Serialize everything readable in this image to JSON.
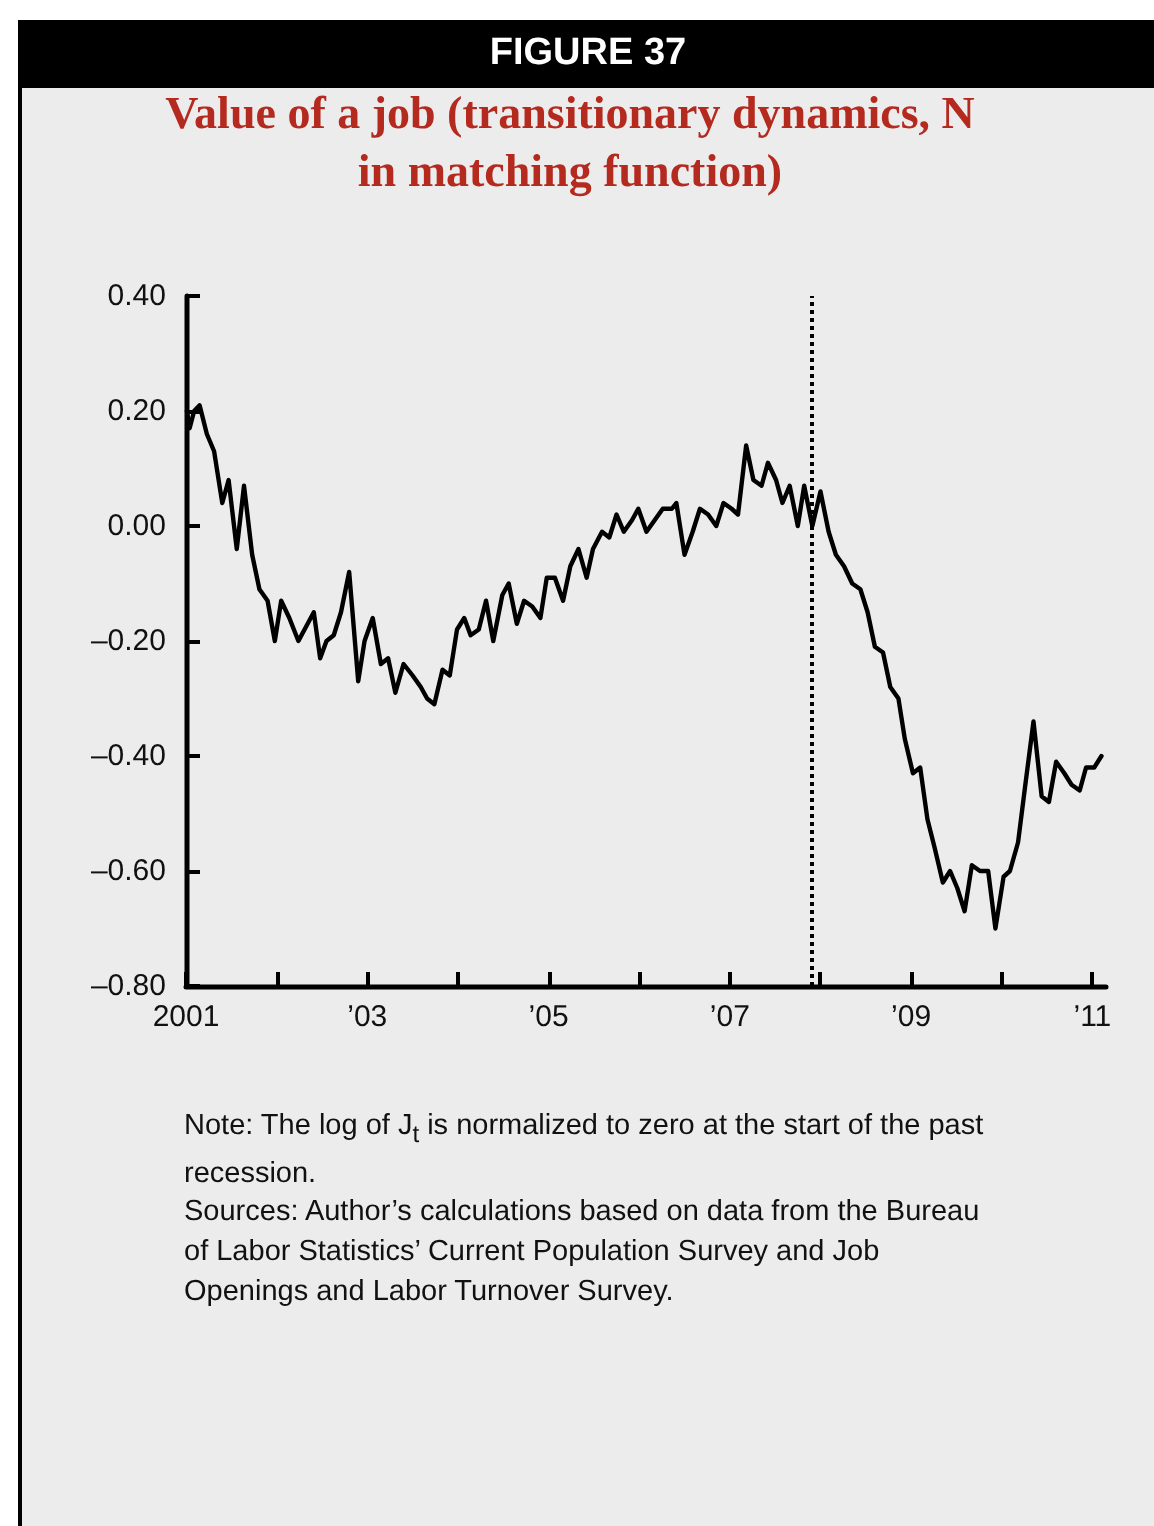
{
  "chart_data": {
    "type": "line",
    "title": "Value of a job (transitionary dynamics, N in matching function)",
    "annotations": [
      "FIGURE 37",
      "Note: The log of J$_{t}$ is normalized to zero at the start of the past recession.",
      "Sources: Author’s calculations based on data from the Bureau of Labor Statistics’ Current Population Survey and Job Openings and Labor Turnover Survey."
    ],
    "series": [
      {
        "color": "#000000",
        "x": [
          2001.01,
          2001.04,
          2001.09,
          2001.15,
          2001.23,
          2001.31,
          2001.4,
          2001.47,
          2001.56,
          2001.64,
          2001.73,
          2001.81,
          2001.9,
          2001.98,
          2002.05,
          2002.14,
          2002.24,
          2002.41,
          2002.48,
          2002.55,
          2002.63,
          2002.71,
          2002.8,
          2002.9,
          2002.97,
          2003.06,
          2003.15,
          2003.23,
          2003.31,
          2003.4,
          2003.5,
          2003.59,
          2003.66,
          2003.74,
          2003.83,
          2003.91,
          2003.99,
          2004.07,
          2004.14,
          2004.23,
          2004.31,
          2004.39,
          2004.49,
          2004.56,
          2004.65,
          2004.73,
          2004.82,
          2004.91,
          2004.98,
          2005.07,
          2005.16,
          2005.24,
          2005.33,
          2005.42,
          2005.49,
          2005.59,
          2005.67,
          2005.75,
          2005.83,
          2005.92,
          2005.99,
          2006.08,
          2006.17,
          2006.26,
          2006.36,
          2006.41,
          2006.5,
          2006.59,
          2006.67,
          2006.76,
          2006.85,
          2006.93,
          2007.02,
          2007.09,
          2007.18,
          2007.26,
          2007.35,
          2007.42,
          2007.51,
          2007.58,
          2007.66,
          2007.75,
          2007.82,
          2007.91,
          2008.0,
          2008.09,
          2008.17,
          2008.26,
          2008.35,
          2008.44,
          2008.52,
          2008.6,
          2008.69,
          2008.77,
          2008.86,
          2008.93,
          2009.02,
          2009.1,
          2009.18,
          2009.26,
          2009.35,
          2009.43,
          2009.51,
          2009.59,
          2009.67,
          2009.76,
          2009.85,
          2009.93,
          2010.02,
          2010.09,
          2010.18,
          2010.26,
          2010.35,
          2010.44,
          2010.52,
          2010.6,
          2010.69,
          2010.77,
          2010.86,
          2010.93,
          2011.02,
          2011.1
        ],
        "values": [
          0.2,
          0.17,
          0.2,
          0.21,
          0.16,
          0.13,
          0.04,
          0.08,
          -0.04,
          0.07,
          -0.05,
          -0.11,
          -0.13,
          -0.2,
          -0.13,
          -0.16,
          -0.2,
          -0.15,
          -0.23,
          -0.2,
          -0.19,
          -0.15,
          -0.08,
          -0.27,
          -0.2,
          -0.16,
          -0.24,
          -0.23,
          -0.29,
          -0.24,
          -0.26,
          -0.28,
          -0.3,
          -0.31,
          -0.25,
          -0.26,
          -0.18,
          -0.16,
          -0.19,
          -0.18,
          -0.13,
          -0.2,
          -0.12,
          -0.1,
          -0.17,
          -0.13,
          -0.14,
          -0.16,
          -0.09,
          -0.09,
          -0.13,
          -0.07,
          -0.04,
          -0.09,
          -0.04,
          -0.01,
          -0.02,
          0.02,
          -0.01,
          0.01,
          0.03,
          -0.01,
          0.01,
          0.03,
          0.03,
          0.04,
          -0.05,
          -0.01,
          0.03,
          0.02,
          0.0,
          0.04,
          0.03,
          0.02,
          0.14,
          0.08,
          0.07,
          0.11,
          0.08,
          0.04,
          0.07,
          0.0,
          0.07,
          0.0,
          0.06,
          -0.01,
          -0.05,
          -0.07,
          -0.1,
          -0.11,
          -0.15,
          -0.21,
          -0.22,
          -0.28,
          -0.3,
          -0.37,
          -0.43,
          -0.42,
          -0.51,
          -0.56,
          -0.62,
          -0.6,
          -0.63,
          -0.67,
          -0.59,
          -0.6,
          -0.6,
          -0.7,
          -0.61,
          -0.6,
          -0.55,
          -0.45,
          -0.34,
          -0.47,
          -0.48,
          -0.41,
          -0.43,
          -0.45,
          -0.46,
          -0.42,
          -0.42,
          -0.4
        ]
      }
    ],
    "xlim": [
      2001,
      2011.15
    ],
    "xticks": [
      2001,
      {
        "value": 2002,
        "label": null
      },
      {
        "value": 2003,
        "label": "’03"
      },
      {
        "value": 2004,
        "label": null
      },
      {
        "value": 2005,
        "label": "’05"
      },
      {
        "value": 2006,
        "label": null
      },
      {
        "value": 2007,
        "label": "’07"
      },
      {
        "value": 2008,
        "label": null
      },
      {
        "value": 2009,
        "label": "’09"
      },
      {
        "value": 2010,
        "label": null
      },
      {
        "value": 2011,
        "label": "’11"
      }
    ],
    "ylim": [
      -0.8,
      0.4
    ],
    "yticks": [
      {
        "value": -0.8,
        "label": "–0.80"
      },
      {
        "value": -0.6,
        "label": "–0.60"
      },
      {
        "value": -0.4,
        "label": "–0.40"
      },
      {
        "value": -0.2,
        "label": "–0.20"
      },
      {
        "value": 0,
        "label": "0.00"
      },
      {
        "value": 0.2,
        "label": "0.20"
      },
      {
        "value": 0.4,
        "label": "0.40"
      }
    ],
    "ref_lines": [
      {
        "axis": "x",
        "value": 2007.91,
        "color": "#000000",
        "line_style": "dotted"
      }
    ],
    "grid": false,
    "marker": "none",
    "line_style": "solid"
  }
}
